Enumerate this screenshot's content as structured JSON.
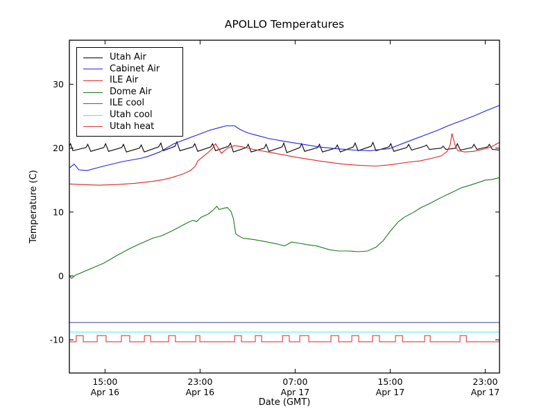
{
  "figure": {
    "title": "APOLLO Temperatures"
  },
  "chart_data": {
    "type": "line",
    "title": "APOLLO Temperatures",
    "xlabel": "Date (GMT)",
    "ylabel": "Temperature (C)",
    "x_unit": "hours since Apr 16 00:00 GMT",
    "xlim": [
      12.0,
      48.2
    ],
    "ylim": [
      -15.2,
      36.9
    ],
    "grid": false,
    "legend_position": "upper left",
    "xticks": [
      {
        "t": 15,
        "label": "15:00",
        "sublabel": "Apr 16"
      },
      {
        "t": 23,
        "label": "23:00",
        "sublabel": "Apr 16"
      },
      {
        "t": 31,
        "label": "07:00",
        "sublabel": "Apr 17"
      },
      {
        "t": 39,
        "label": "15:00",
        "sublabel": "Apr 17"
      },
      {
        "t": 47,
        "label": "23:00",
        "sublabel": "Apr 17"
      }
    ],
    "yticks": [
      {
        "v": -10,
        "label": "-10"
      },
      {
        "v": 0,
        "label": "0"
      },
      {
        "v": 10,
        "label": "10"
      },
      {
        "v": 20,
        "label": "20"
      },
      {
        "v": 30,
        "label": "30"
      }
    ],
    "series": [
      {
        "name": "Utah Air",
        "color": "#000000",
        "points": [
          [
            12.0,
            20.3
          ],
          [
            12.1,
            20.7
          ],
          [
            12.3,
            19.6
          ],
          [
            13.4,
            20.1
          ],
          [
            13.55,
            20.6
          ],
          [
            13.8,
            19.5
          ],
          [
            14.9,
            20.1
          ],
          [
            15.05,
            20.7
          ],
          [
            15.3,
            19.5
          ],
          [
            16.4,
            20.1
          ],
          [
            16.55,
            20.6
          ],
          [
            16.8,
            19.4
          ],
          [
            17.9,
            20.0
          ],
          [
            18.05,
            20.5
          ],
          [
            18.3,
            19.4
          ],
          [
            19.5,
            20.2
          ],
          [
            19.7,
            20.8
          ],
          [
            19.9,
            19.6
          ],
          [
            20.9,
            20.3
          ],
          [
            21.05,
            21.0
          ],
          [
            21.3,
            19.6
          ],
          [
            22.4,
            20.2
          ],
          [
            22.55,
            20.7
          ],
          [
            22.8,
            19.5
          ],
          [
            23.9,
            20.2
          ],
          [
            24.05,
            20.7
          ],
          [
            24.3,
            19.6
          ],
          [
            25.4,
            20.3
          ],
          [
            25.55,
            20.8
          ],
          [
            25.8,
            19.4
          ],
          [
            26.9,
            20.1
          ],
          [
            27.05,
            20.6
          ],
          [
            27.3,
            19.4
          ],
          [
            28.4,
            20.0
          ],
          [
            28.55,
            20.6
          ],
          [
            28.8,
            19.5
          ],
          [
            29.9,
            20.2
          ],
          [
            30.05,
            20.8
          ],
          [
            30.3,
            19.3
          ],
          [
            31.4,
            20.1
          ],
          [
            31.55,
            20.7
          ],
          [
            31.8,
            19.5
          ],
          [
            32.9,
            20.1
          ],
          [
            33.05,
            20.6
          ],
          [
            33.3,
            19.4
          ],
          [
            34.4,
            20.0
          ],
          [
            34.55,
            20.5
          ],
          [
            34.8,
            19.4
          ],
          [
            35.9,
            20.2
          ],
          [
            36.05,
            20.8
          ],
          [
            36.3,
            19.6
          ],
          [
            37.4,
            20.3
          ],
          [
            37.55,
            20.9
          ],
          [
            37.8,
            19.6
          ],
          [
            38.9,
            20.2
          ],
          [
            39.05,
            20.7
          ],
          [
            39.3,
            19.5
          ],
          [
            40.4,
            20.1
          ],
          [
            40.55,
            20.6
          ],
          [
            40.8,
            19.7
          ],
          [
            41.9,
            20.3
          ],
          [
            42.05,
            20.5
          ],
          [
            42.3,
            19.8
          ],
          [
            43.3,
            20.0
          ],
          [
            43.45,
            20.3
          ],
          [
            43.7,
            19.8
          ],
          [
            44.5,
            20.0
          ],
          [
            44.65,
            20.7
          ],
          [
            44.9,
            19.7
          ],
          [
            45.9,
            20.1
          ],
          [
            46.05,
            20.6
          ],
          [
            46.3,
            19.8
          ],
          [
            47.2,
            20.2
          ],
          [
            47.35,
            20.6
          ],
          [
            47.6,
            19.8
          ],
          [
            48.2,
            19.7
          ]
        ]
      },
      {
        "name": "Cabinet Air",
        "color": "#2323e0",
        "points": [
          [
            12.0,
            16.9
          ],
          [
            12.4,
            17.5
          ],
          [
            12.8,
            16.6
          ],
          [
            13.5,
            16.5
          ],
          [
            14.9,
            17.2
          ],
          [
            16.5,
            17.9
          ],
          [
            18.0,
            18.4
          ],
          [
            18.6,
            18.7
          ],
          [
            19.6,
            19.4
          ],
          [
            20.8,
            20.7
          ],
          [
            21.8,
            21.4
          ],
          [
            22.8,
            22.1
          ],
          [
            23.8,
            22.8
          ],
          [
            24.6,
            23.2
          ],
          [
            25.2,
            23.5
          ],
          [
            25.9,
            23.5
          ],
          [
            26.4,
            22.9
          ],
          [
            27.0,
            22.4
          ],
          [
            27.8,
            22.0
          ],
          [
            28.8,
            21.5
          ],
          [
            30.0,
            21.1
          ],
          [
            31.0,
            20.8
          ],
          [
            32.0,
            20.5
          ],
          [
            33.0,
            20.2
          ],
          [
            34.5,
            19.9
          ],
          [
            36.0,
            19.7
          ],
          [
            37.3,
            19.6
          ],
          [
            38.2,
            19.8
          ],
          [
            38.9,
            19.9
          ],
          [
            40.0,
            20.7
          ],
          [
            41.0,
            21.4
          ],
          [
            42.0,
            22.1
          ],
          [
            43.0,
            22.8
          ],
          [
            44.0,
            23.6
          ],
          [
            45.0,
            24.3
          ],
          [
            46.0,
            25.0
          ],
          [
            47.0,
            25.8
          ],
          [
            48.2,
            26.7
          ]
        ]
      },
      {
        "name": "ILE Air",
        "color": "#e02323",
        "points": [
          [
            12.0,
            14.4
          ],
          [
            13.0,
            14.3
          ],
          [
            14.5,
            14.2
          ],
          [
            16.0,
            14.3
          ],
          [
            17.5,
            14.5
          ],
          [
            19.0,
            14.8
          ],
          [
            20.0,
            15.1
          ],
          [
            20.8,
            15.5
          ],
          [
            21.6,
            16.0
          ],
          [
            22.2,
            16.5
          ],
          [
            22.6,
            17.2
          ],
          [
            22.8,
            18.0
          ],
          [
            23.2,
            18.6
          ],
          [
            23.6,
            19.2
          ],
          [
            24.0,
            19.9
          ],
          [
            24.3,
            20.7
          ],
          [
            24.8,
            19.2
          ],
          [
            25.3,
            20.0
          ],
          [
            25.9,
            20.4
          ],
          [
            26.6,
            20.2
          ],
          [
            27.5,
            19.8
          ],
          [
            29.0,
            19.3
          ],
          [
            31.0,
            18.6
          ],
          [
            33.0,
            18.0
          ],
          [
            35.0,
            17.5
          ],
          [
            36.5,
            17.3
          ],
          [
            37.8,
            17.2
          ],
          [
            39.0,
            17.4
          ],
          [
            40.5,
            17.8
          ],
          [
            41.5,
            18.0
          ],
          [
            42.5,
            18.4
          ],
          [
            43.3,
            18.8
          ],
          [
            43.8,
            19.5
          ],
          [
            44.05,
            20.5
          ],
          [
            44.2,
            22.3
          ],
          [
            44.45,
            20.5
          ],
          [
            44.7,
            19.6
          ],
          [
            45.3,
            19.4
          ],
          [
            46.0,
            19.5
          ],
          [
            46.8,
            19.8
          ],
          [
            47.5,
            20.2
          ],
          [
            48.2,
            20.9
          ]
        ]
      },
      {
        "name": "Dome Air",
        "color": "#1a7a1a",
        "points": [
          [
            12.0,
            0.0
          ],
          [
            12.2,
            -0.4
          ],
          [
            12.5,
            0.1
          ],
          [
            13.5,
            0.9
          ],
          [
            14.9,
            2.0
          ],
          [
            16.0,
            3.2
          ],
          [
            17.0,
            4.2
          ],
          [
            17.8,
            4.9
          ],
          [
            19.0,
            5.9
          ],
          [
            19.8,
            6.3
          ],
          [
            20.8,
            7.2
          ],
          [
            21.9,
            8.3
          ],
          [
            22.4,
            8.7
          ],
          [
            22.7,
            8.5
          ],
          [
            23.1,
            9.2
          ],
          [
            23.7,
            9.7
          ],
          [
            24.1,
            10.3
          ],
          [
            24.4,
            10.9
          ],
          [
            24.6,
            10.4
          ],
          [
            25.0,
            10.6
          ],
          [
            25.3,
            10.7
          ],
          [
            25.6,
            10.1
          ],
          [
            25.8,
            9.0
          ],
          [
            26.0,
            6.6
          ],
          [
            26.3,
            6.2
          ],
          [
            26.6,
            5.9
          ],
          [
            27.5,
            5.7
          ],
          [
            28.4,
            5.4
          ],
          [
            29.5,
            5.0
          ],
          [
            30.1,
            4.7
          ],
          [
            30.7,
            5.3
          ],
          [
            31.4,
            5.1
          ],
          [
            32.0,
            4.9
          ],
          [
            32.8,
            4.7
          ],
          [
            33.9,
            4.1
          ],
          [
            34.6,
            3.9
          ],
          [
            35.5,
            3.9
          ],
          [
            36.3,
            3.8
          ],
          [
            37.1,
            3.9
          ],
          [
            37.8,
            4.5
          ],
          [
            38.4,
            5.5
          ],
          [
            39.0,
            7.0
          ],
          [
            39.7,
            8.5
          ],
          [
            40.2,
            9.2
          ],
          [
            41.0,
            10.0
          ],
          [
            41.6,
            10.7
          ],
          [
            42.4,
            11.4
          ],
          [
            43.2,
            12.2
          ],
          [
            44.1,
            13.0
          ],
          [
            45.0,
            13.8
          ],
          [
            45.9,
            14.3
          ],
          [
            47.0,
            15.0
          ],
          [
            47.6,
            15.1
          ],
          [
            48.2,
            15.4
          ]
        ]
      },
      {
        "name": "ILE cool",
        "color": "#55559b",
        "points": [
          [
            12.0,
            -7.3
          ],
          [
            48.2,
            -7.3
          ]
        ]
      },
      {
        "name": "Utah cool",
        "color": "#49eaf2",
        "points": [
          [
            12.0,
            -8.8
          ],
          [
            48.2,
            -8.8
          ]
        ]
      },
      {
        "name": "Utah heat",
        "color": "#e03a3a",
        "square_wave": {
          "low": -10.3,
          "high": -9.35,
          "pulses": [
            [
              12.58,
              13.17
            ],
            [
              14.34,
              15.09
            ],
            [
              16.38,
              17.08
            ],
            [
              18.31,
              18.83
            ],
            [
              20.35,
              20.93
            ],
            [
              22.63,
              22.98
            ],
            [
              25.9,
              26.48
            ],
            [
              27.65,
              28.18
            ],
            [
              29.93,
              30.51
            ],
            [
              31.39,
              32.15
            ],
            [
              34.01,
              34.66
            ],
            [
              35.77,
              36.35
            ],
            [
              37.52,
              38.1
            ],
            [
              39.45,
              40.03
            ],
            [
              41.9,
              42.37
            ],
            [
              44.88,
              45.41
            ]
          ]
        }
      }
    ]
  }
}
